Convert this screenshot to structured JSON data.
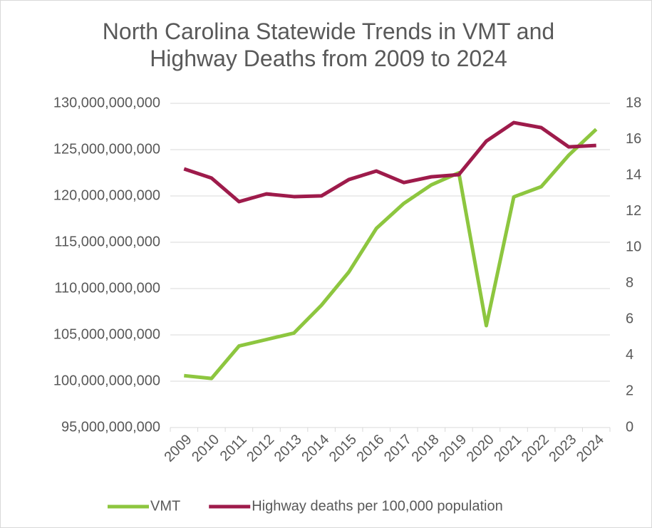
{
  "chart_data": {
    "type": "line",
    "title": "North Carolina Statewide Trends in VMT and Highway Deaths from 2009 to 2024",
    "categories": [
      "2009",
      "2010",
      "2011",
      "2012",
      "2013",
      "2014",
      "2015",
      "2016",
      "2017",
      "2018",
      "2019",
      "2020",
      "2021",
      "2022",
      "2023",
      "2024"
    ],
    "series": [
      {
        "name": "VMT",
        "color": "#8dc63f",
        "axis": "y",
        "values": [
          100600000000,
          100300000000,
          103800000000,
          104500000000,
          105200000000,
          108200000000,
          111800000000,
          116500000000,
          119200000000,
          121200000000,
          122500000000,
          106000000000,
          119900000000,
          121000000000,
          124400000000,
          127200000000
        ]
      },
      {
        "name": "Highway deaths per 100,000 population",
        "color": "#9e1b4b",
        "axis": "y2",
        "values": [
          14.36,
          13.85,
          12.54,
          12.97,
          12.82,
          12.86,
          13.77,
          14.24,
          13.6,
          13.92,
          14.04,
          15.9,
          16.93,
          16.65,
          15.58,
          15.66
        ]
      }
    ],
    "ylim": [
      95000000000,
      130000000000
    ],
    "yticks": [
      {
        "value": 95000000000,
        "label": "95,000,000,000"
      },
      {
        "value": 100000000000,
        "label": "100,000,000,000"
      },
      {
        "value": 105000000000,
        "label": "105,000,000,000"
      },
      {
        "value": 110000000000,
        "label": "110,000,000,000"
      },
      {
        "value": 115000000000,
        "label": "115,000,000,000"
      },
      {
        "value": 120000000000,
        "label": "120,000,000,000"
      },
      {
        "value": 125000000000,
        "label": "125,000,000,000"
      },
      {
        "value": 130000000000,
        "label": "130,000,000,000"
      }
    ],
    "y2lim": [
      0,
      18
    ],
    "y2ticks": [
      0,
      2,
      4,
      6,
      8,
      10,
      12,
      14,
      16,
      18
    ],
    "grid": true,
    "legend": "bottom"
  }
}
